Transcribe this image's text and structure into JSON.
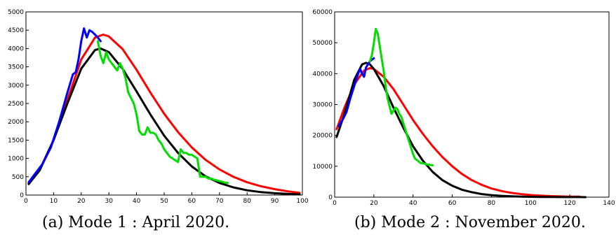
{
  "captions": {
    "a": "(a) Mode 1 : April 2020.",
    "b": "(b) Mode 2 : November 2020."
  },
  "chart_data": [
    {
      "type": "line",
      "title": "",
      "xlabel": "",
      "ylabel": "",
      "xlim": [
        0,
        100
      ],
      "ylim": [
        0,
        5000
      ],
      "xticks": [
        0,
        10,
        20,
        30,
        40,
        50,
        60,
        70,
        80,
        90,
        100
      ],
      "yticks": [
        0,
        500,
        1000,
        1500,
        2000,
        2500,
        3000,
        3500,
        4000,
        4500,
        5000
      ],
      "grid": false,
      "legend": "none",
      "series": [
        {
          "color": "#ff0000",
          "x": [
            1,
            5,
            10,
            15,
            20,
            25,
            28,
            30,
            35,
            40,
            45,
            50,
            55,
            60,
            65,
            70,
            75,
            80,
            85,
            90,
            95,
            99
          ],
          "y": [
            320,
            700,
            1500,
            2600,
            3700,
            4300,
            4380,
            4330,
            3980,
            3420,
            2800,
            2220,
            1720,
            1300,
            960,
            700,
            500,
            350,
            240,
            160,
            100,
            60
          ]
        },
        {
          "color": "#000000",
          "x": [
            1,
            5,
            10,
            15,
            20,
            25,
            27,
            30,
            35,
            40,
            45,
            50,
            55,
            60,
            65,
            70,
            75,
            80,
            85,
            90,
            95,
            99
          ],
          "y": [
            300,
            680,
            1500,
            2500,
            3450,
            3960,
            4000,
            3900,
            3440,
            2830,
            2200,
            1620,
            1150,
            780,
            510,
            330,
            210,
            130,
            80,
            50,
            30,
            20
          ]
        },
        {
          "color": "#0000ff",
          "x": [
            1,
            3,
            6,
            9,
            12,
            15,
            17,
            18,
            19,
            20,
            21,
            22,
            23,
            24,
            25,
            26,
            27
          ],
          "y": [
            350,
            550,
            850,
            1300,
            2000,
            2800,
            3300,
            3350,
            3700,
            4200,
            4550,
            4300,
            4500,
            4450,
            4380,
            4300,
            4200
          ]
        },
        {
          "color": "#00dd00",
          "x": [
            26,
            27,
            28,
            29,
            30,
            31,
            32,
            33,
            34,
            35,
            36,
            37,
            38,
            39,
            40,
            41,
            42,
            43,
            44,
            45,
            46,
            47,
            48,
            49,
            50,
            51,
            52,
            53,
            54,
            55,
            56,
            57,
            58,
            59,
            60,
            61,
            62,
            63,
            64,
            65,
            66,
            67,
            68,
            69,
            70,
            71,
            72,
            73
          ],
          "y": [
            4200,
            3800,
            3600,
            3900,
            3700,
            3600,
            3500,
            3400,
            3600,
            3450,
            3200,
            2800,
            2650,
            2500,
            2200,
            1750,
            1650,
            1650,
            1850,
            1700,
            1700,
            1650,
            1500,
            1400,
            1250,
            1150,
            1050,
            1000,
            950,
            900,
            1250,
            1150,
            1150,
            1100,
            1100,
            1050,
            1000,
            500,
            500,
            500,
            450,
            450,
            420,
            400,
            380,
            360,
            340,
            330
          ]
        }
      ]
    },
    {
      "type": "line",
      "title": "",
      "xlabel": "",
      "ylabel": "",
      "xlim": [
        0,
        140
      ],
      "ylim": [
        0,
        60000
      ],
      "xticks": [
        0,
        20,
        40,
        60,
        80,
        100,
        120,
        140
      ],
      "yticks": [
        0,
        10000,
        20000,
        30000,
        40000,
        50000,
        60000
      ],
      "grid": false,
      "legend": "none",
      "series": [
        {
          "color": "#ff0000",
          "x": [
            1,
            5,
            10,
            15,
            18,
            20,
            25,
            30,
            35,
            40,
            45,
            50,
            55,
            60,
            65,
            70,
            75,
            80,
            85,
            90,
            95,
            100,
            105,
            110,
            115,
            120,
            125
          ],
          "y": [
            22000,
            29000,
            36500,
            41000,
            41800,
            41500,
            39000,
            35000,
            30000,
            25000,
            20500,
            16500,
            13000,
            10000,
            7500,
            5500,
            4000,
            2800,
            2000,
            1400,
            1000,
            700,
            500,
            350,
            250,
            180,
            150
          ]
        },
        {
          "color": "#000000",
          "x": [
            1,
            5,
            10,
            14,
            16,
            18,
            20,
            25,
            30,
            35,
            40,
            45,
            50,
            55,
            60,
            65,
            70,
            75,
            80,
            85,
            90,
            95,
            100,
            105,
            110,
            115,
            120,
            125,
            128
          ],
          "y": [
            19500,
            27000,
            38000,
            43000,
            43500,
            43000,
            41500,
            36000,
            29000,
            22500,
            16500,
            11800,
            8200,
            5500,
            3700,
            2400,
            1600,
            1000,
            650,
            420,
            270,
            170,
            110,
            70,
            45,
            30,
            20,
            12,
            10
          ]
        },
        {
          "color": "#0000ff",
          "x": [
            2,
            4,
            6,
            8,
            10,
            12,
            13,
            14,
            15,
            16,
            17,
            18,
            19,
            20
          ],
          "y": [
            23000,
            25000,
            27500,
            32000,
            36000,
            40000,
            41500,
            40000,
            39000,
            42000,
            43000,
            44000,
            44500,
            45000
          ]
        },
        {
          "color": "#00dd00",
          "x": [
            18,
            19,
            20,
            21,
            22,
            23,
            24,
            25,
            26,
            27,
            28,
            29,
            30,
            31,
            32,
            33,
            34,
            35,
            36,
            37,
            38,
            39,
            40,
            41,
            42,
            43,
            44,
            45,
            46,
            47,
            48,
            49,
            50
          ],
          "y": [
            44000,
            46000,
            50000,
            54500,
            53000,
            49000,
            45000,
            41000,
            36000,
            32000,
            29500,
            27000,
            28000,
            29000,
            28500,
            27000,
            26000,
            24000,
            22000,
            20000,
            18000,
            16000,
            14000,
            12500,
            12000,
            11500,
            11000,
            11000,
            10800,
            10600,
            10500,
            10400,
            10300
          ]
        }
      ]
    }
  ]
}
